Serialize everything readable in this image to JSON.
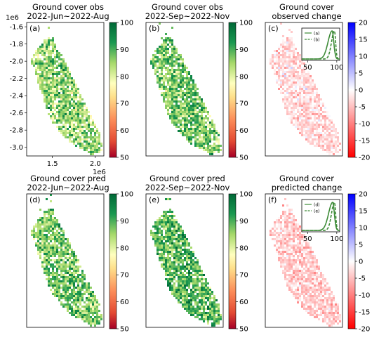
{
  "chart_data": [
    {
      "type": "heatmap",
      "panel_label": "(a)",
      "title": [
        "Ground cover obs",
        "2022-Jun~2022-Aug"
      ],
      "colormap": "red-yellow-green",
      "colorbar_range": [
        50,
        100
      ],
      "colorbar_ticks": [
        "50",
        "60",
        "70",
        "80",
        "90",
        "100"
      ],
      "xlim": [
        1.2,
        2.1
      ],
      "ylim": [
        -3.1,
        -1.55
      ],
      "x_ticks": [
        "1.5",
        "2.0"
      ],
      "y_ticks": [
        "-1.6",
        "-1.8",
        "-2.0",
        "-2.2",
        "-2.4",
        "-2.6",
        "-2.8",
        "-3.0"
      ],
      "x_offset_label": "1e6",
      "y_offset_label": "1e6",
      "map_mean": 86
    },
    {
      "type": "heatmap",
      "panel_label": "(b)",
      "title": [
        "Ground cover obs",
        "2022-Sep~2022-Nov"
      ],
      "colormap": "red-yellow-green",
      "colorbar_range": [
        50,
        100
      ],
      "colorbar_ticks": [
        "50",
        "60",
        "70",
        "80",
        "90",
        "100"
      ],
      "map_mean": 88
    },
    {
      "type": "heatmap",
      "panel_label": "(c)",
      "title": [
        "Ground cover",
        "observed change"
      ],
      "colormap": "red-white-blue",
      "colorbar_range": [
        -20,
        20
      ],
      "colorbar_ticks": [
        "-20",
        "-15",
        "-10",
        "-5",
        "0",
        "5",
        "10",
        "15",
        "20"
      ],
      "map_mean": -3,
      "inset": {
        "type": "line",
        "x_ticks": [
          "50",
          "100"
        ],
        "xlim": [
          40,
          105
        ],
        "series": [
          {
            "name": "(a)",
            "style": "solid",
            "peak": 92,
            "width": 7
          },
          {
            "name": "(b)",
            "style": "dashed",
            "peak": 96,
            "width": 5
          }
        ]
      }
    },
    {
      "type": "heatmap",
      "panel_label": "(d)",
      "title": [
        "Ground cover pred",
        "2022-Jun~2022-Aug"
      ],
      "colormap": "red-yellow-green",
      "colorbar_range": [
        50,
        100
      ],
      "colorbar_ticks": [
        "50",
        "60",
        "70",
        "80",
        "90",
        "100"
      ],
      "map_mean": 88
    },
    {
      "type": "heatmap",
      "panel_label": "(e)",
      "title": [
        "Ground cover pred",
        "2022-Sep~2022-Nov"
      ],
      "colormap": "red-yellow-green",
      "colorbar_range": [
        50,
        100
      ],
      "colorbar_ticks": [
        "50",
        "60",
        "70",
        "80",
        "90",
        "100"
      ],
      "map_mean": 90
    },
    {
      "type": "heatmap",
      "panel_label": "(f)",
      "title": [
        "Ground cover",
        "predicted change"
      ],
      "colormap": "red-white-blue",
      "colorbar_range": [
        -20,
        20
      ],
      "colorbar_ticks": [
        "-20",
        "-15",
        "-10",
        "-5",
        "0",
        "5",
        "10",
        "15",
        "20"
      ],
      "map_mean": -4,
      "inset": {
        "type": "line",
        "x_ticks": [
          "50",
          "100"
        ],
        "xlim": [
          40,
          105
        ],
        "series": [
          {
            "name": "(d)",
            "style": "solid",
            "peak": 93,
            "width": 7
          },
          {
            "name": "(e)",
            "style": "dashed",
            "peak": 96,
            "width": 5
          }
        ]
      }
    }
  ]
}
